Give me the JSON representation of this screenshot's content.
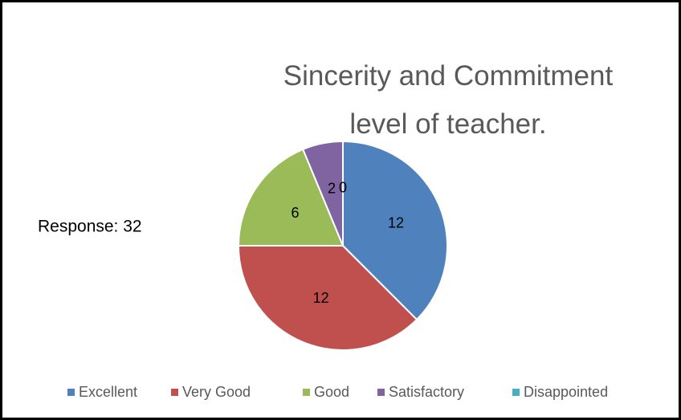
{
  "chart_data": {
    "type": "pie",
    "title": "Sincerity and Commitment level of teacher.",
    "annotation": "Response: 32",
    "categories": [
      "Excellent",
      "Very Good",
      "Good",
      "Satisfactory",
      "Disappointed"
    ],
    "values": [
      12,
      12,
      6,
      2,
      0
    ],
    "colors": [
      "#4f81bd",
      "#c0504d",
      "#9bbb59",
      "#8064a2",
      "#4bacc6"
    ],
    "legend": "bottom"
  }
}
